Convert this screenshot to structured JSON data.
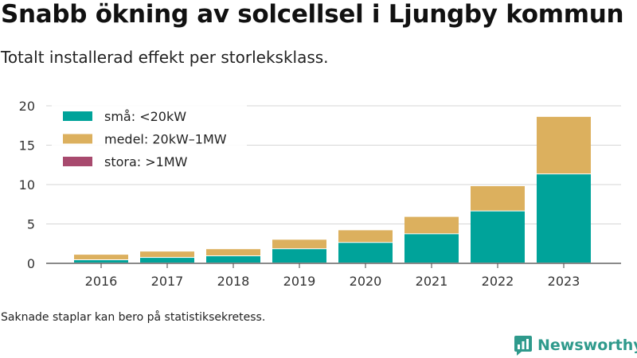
{
  "header": {
    "title": "Snabb ökning av solcellsel i Ljungby kommun",
    "subtitle": "Totalt installerad effekt per storleksklass."
  },
  "footer": {
    "note": "Saknade staplar kan bero på statistiksekretess.",
    "brand": "Newsworthy"
  },
  "colors": {
    "small": "#00a39a",
    "medium": "#dcb05e",
    "large": "#a84a6e"
  },
  "chart_data": {
    "type": "bar",
    "stacked": true,
    "categories": [
      "2016",
      "2017",
      "2018",
      "2019",
      "2020",
      "2021",
      "2022",
      "2023"
    ],
    "series": [
      {
        "name": "små: <20kW",
        "color": "#00a39a",
        "values": [
          0.4,
          0.7,
          0.9,
          1.8,
          2.6,
          3.7,
          6.6,
          11.3
        ]
      },
      {
        "name": "medel: 20kW–1MW",
        "color": "#dcb05e",
        "values": [
          0.7,
          0.8,
          0.9,
          1.2,
          1.6,
          2.2,
          3.2,
          7.3
        ]
      },
      {
        "name": "stora: >1MW",
        "color": "#a84a6e",
        "values": [
          0,
          0,
          0,
          0,
          0,
          0,
          0,
          0
        ]
      }
    ],
    "yticks": [
      "0",
      "5",
      "10",
      "15",
      "20"
    ],
    "ylim": [
      0,
      20
    ],
    "grid": true,
    "legend": "top-left"
  }
}
